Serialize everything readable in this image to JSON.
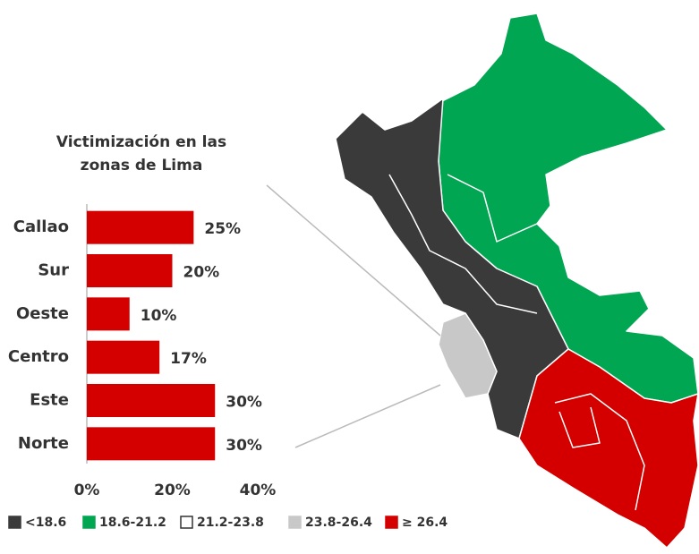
{
  "chart_data": {
    "type": "hbar",
    "title": "Victimización en las zonas de Lima",
    "categories": [
      "Callao",
      "Sur",
      "Oeste",
      "Centro",
      "Este",
      "Norte"
    ],
    "values": [
      25,
      20,
      10,
      17,
      30,
      30
    ],
    "value_labels": [
      "25%",
      "20%",
      "10%",
      "17%",
      "30%",
      "30%"
    ],
    "color": "#d40000",
    "xlim": [
      0,
      40
    ],
    "xticks": [
      {
        "value": 0,
        "label": "0%"
      },
      {
        "value": 20,
        "label": "20%"
      },
      {
        "value": 40,
        "label": "40%"
      }
    ]
  },
  "map_legend": [
    {
      "label": "<18.6",
      "color": "#3a3a3a"
    },
    {
      "label": "18.6-21.2",
      "color": "#00a651"
    },
    {
      "label": "21.2-23.8",
      "color": "#ffffff"
    },
    {
      "label": "23.8-26.4",
      "color": "#c8c8c8"
    },
    {
      "label": "≥ 26.4",
      "color": "#d40000"
    }
  ]
}
